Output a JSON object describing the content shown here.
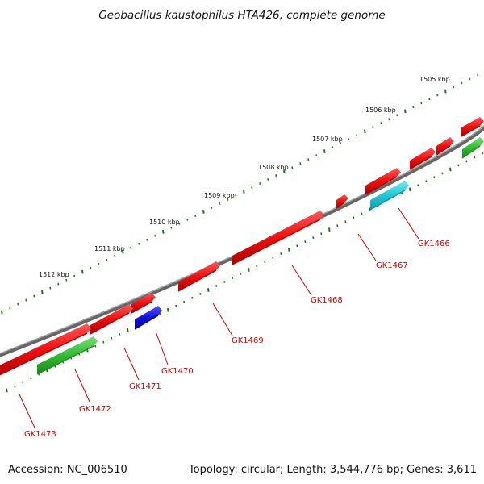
{
  "title": "Geobacillus kaustophilus HTA426, complete genome",
  "footer": {
    "accession": "Accession: NC_006510",
    "summary": "Topology: circular; Length: 3,544,776 bp; Genes: 3,611"
  },
  "scale_labels": [
    "1505 kbp",
    "1506 kbp",
    "1507 kbp",
    "1508 kbp",
    "1509 kbp",
    "1510 kbp",
    "1511 kbp",
    "1512 kbp"
  ],
  "gene_labels": [
    "GK1466",
    "GK1467",
    "GK1468",
    "GK1469",
    "GK1470",
    "GK1471",
    "GK1472",
    "GK1473"
  ],
  "colors": {
    "backbone": "#777777",
    "tick": "#1a7a1a",
    "gene_red": "#ee1111",
    "gene_green": "#33bb33",
    "gene_blue": "#1111dd",
    "gene_cyan": "#22c8d8",
    "label": "#cc0000"
  }
}
